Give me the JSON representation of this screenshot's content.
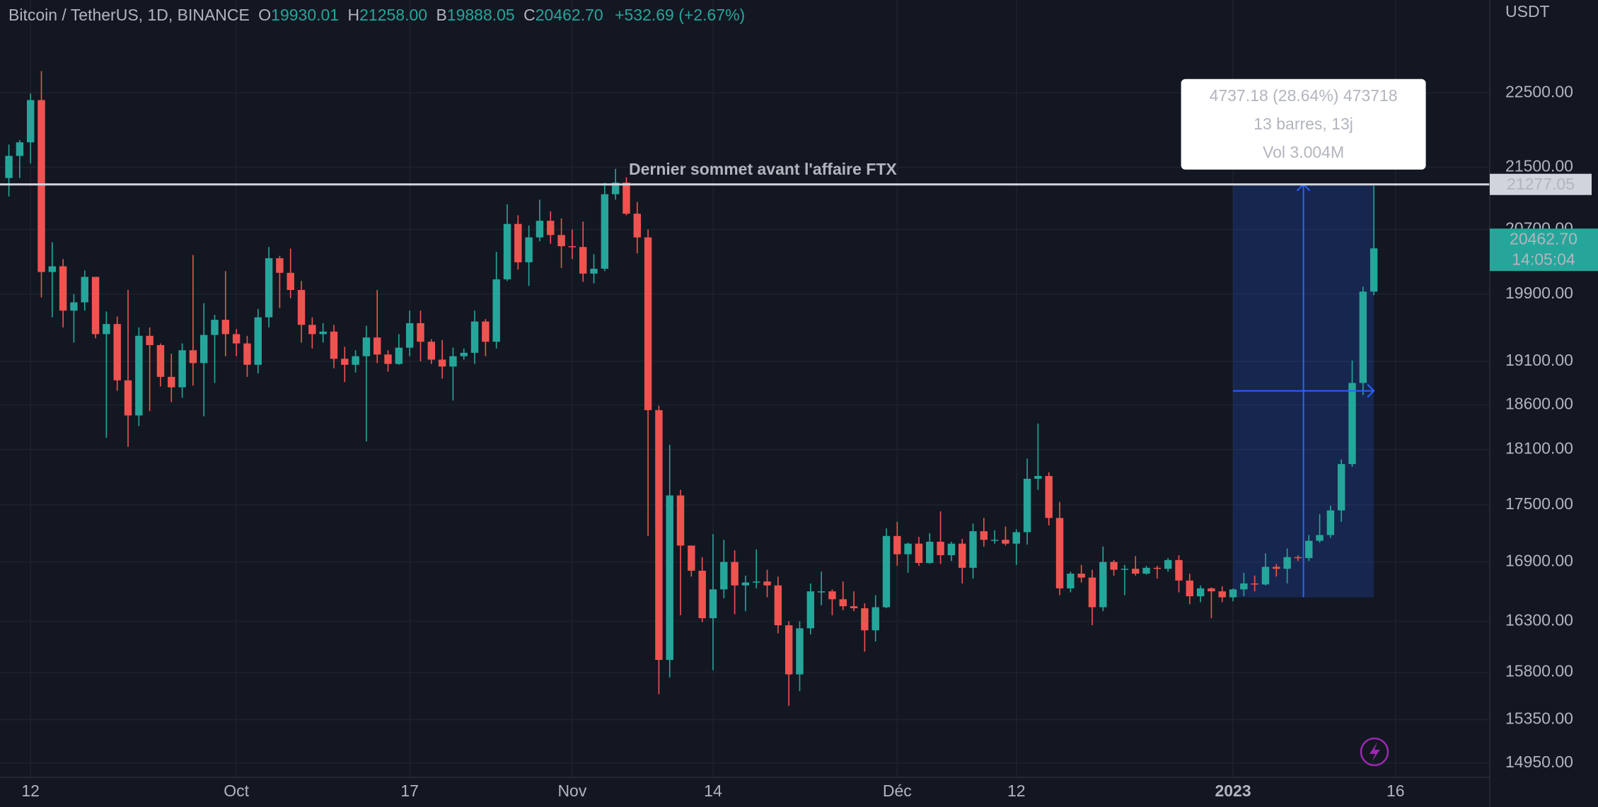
{
  "header": {
    "symbol": "Bitcoin / TetherUS, 1D, BINANCE",
    "o_label": "O",
    "open": "19930.01",
    "h_label": "H",
    "high": "21258.00",
    "l_label": "B",
    "low": "19888.05",
    "c_label": "C",
    "close": "20462.70",
    "change": "+532.69 (+2.67%)"
  },
  "chart_data": {
    "type": "candlestick",
    "currency": "USDT",
    "log_scale": true,
    "grid": true,
    "up_color": "#26a69a",
    "down_color": "#ef5350",
    "xlim": [
      -2.82,
      134.7
    ],
    "ylim": [
      14820,
      23810
    ],
    "xticks": [
      {
        "value": 0,
        "label": "12"
      },
      {
        "value": 19,
        "label": "Oct"
      },
      {
        "value": 35,
        "label": "17"
      },
      {
        "value": 50,
        "label": "Nov"
      },
      {
        "value": 63,
        "label": "14"
      },
      {
        "value": 80,
        "label": "Déc"
      },
      {
        "value": 91,
        "label": "12"
      },
      {
        "value": 111,
        "label": "2023",
        "emphasis": true
      },
      {
        "value": 126,
        "label": "16"
      }
    ],
    "yticks": [
      {
        "value": 22500,
        "label": "22500.00"
      },
      {
        "value": 21500,
        "label": "21500.00"
      },
      {
        "value": 20700,
        "label": "20700.00"
      },
      {
        "value": 19900,
        "label": "19900.00"
      },
      {
        "value": 19100,
        "label": "19100.00"
      },
      {
        "value": 18600,
        "label": "18600.00"
      },
      {
        "value": 18100,
        "label": "18100.00"
      },
      {
        "value": 17500,
        "label": "17500.00"
      },
      {
        "value": 16900,
        "label": "16900.00"
      },
      {
        "value": 16300,
        "label": "16300.00"
      },
      {
        "value": 15800,
        "label": "15800.00"
      },
      {
        "value": 15350,
        "label": "15350.00"
      },
      {
        "value": 14950,
        "label": "14950.00"
      }
    ],
    "x": [
      -2,
      -1,
      0,
      1,
      2,
      3,
      4,
      5,
      6,
      7,
      8,
      9,
      10,
      11,
      12,
      13,
      14,
      15,
      16,
      17,
      18,
      19,
      20,
      21,
      22,
      23,
      24,
      25,
      26,
      27,
      28,
      29,
      30,
      31,
      32,
      33,
      34,
      35,
      36,
      37,
      38,
      39,
      40,
      41,
      42,
      43,
      44,
      45,
      46,
      47,
      48,
      49,
      50,
      51,
      52,
      53,
      54,
      55,
      56,
      57,
      58,
      59,
      60,
      61,
      62,
      63,
      64,
      65,
      66,
      67,
      68,
      69,
      70,
      71,
      72,
      73,
      74,
      75,
      76,
      77,
      78,
      79,
      80,
      81,
      82,
      83,
      84,
      85,
      86,
      87,
      88,
      89,
      90,
      91,
      92,
      93,
      94,
      95,
      96,
      97,
      98,
      99,
      100,
      101,
      102,
      103,
      104,
      105,
      106,
      107,
      108,
      109,
      110,
      111,
      112,
      113,
      114,
      115,
      116,
      117,
      118,
      119,
      120,
      121,
      122,
      123,
      124
    ],
    "open": [
      21360,
      21650,
      21830,
      22400,
      20170,
      20240,
      19700,
      19800,
      20110,
      19420,
      19540,
      18880,
      18480,
      19400,
      19290,
      18920,
      18800,
      19230,
      19080,
      19410,
      19590,
      19420,
      19310,
      19060,
      19620,
      20340,
      20160,
      19950,
      19530,
      19420,
      19450,
      19130,
      19060,
      19160,
      19380,
      19180,
      19070,
      19260,
      19550,
      19330,
      19120,
      19040,
      19160,
      19200,
      19570,
      19330,
      20080,
      20770,
      20290,
      20600,
      20810,
      20630,
      20490,
      20480,
      20150,
      20210,
      21150,
      21300,
      20900,
      20600,
      18540,
      15920,
      17600,
      17070,
      16810,
      16330,
      16620,
      16900,
      16660,
      16690,
      16700,
      16660,
      16260,
      15780,
      16230,
      16600,
      16600,
      16520,
      16450,
      16430,
      16210,
      16440,
      17170,
      16980,
      17090,
      16890,
      17110,
      16970,
      17090,
      16840,
      17220,
      17130,
      17130,
      17090,
      17210,
      17780,
      17810,
      17360,
      16630,
      16780,
      16740,
      16440,
      16900,
      16820,
      16830,
      16780,
      16840,
      16830,
      16920,
      16710,
      16550,
      16630,
      16600,
      16540,
      16620,
      16680,
      16670,
      16850,
      16830,
      16950,
      16940,
      17120,
      17180,
      17440,
      17940,
      18850,
      19930.01
    ],
    "high": [
      21800,
      21860,
      22490,
      22800,
      20540,
      20330,
      19900,
      20190,
      20110,
      19690,
      19630,
      19950,
      19500,
      19500,
      19310,
      19190,
      19310,
      20380,
      19790,
      19650,
      20180,
      19480,
      19400,
      19720,
      20480,
      20370,
      20460,
      20060,
      19620,
      19550,
      19530,
      19270,
      19230,
      19520,
      19950,
      19230,
      19420,
      19700,
      19700,
      19360,
      19350,
      19260,
      19250,
      19700,
      19600,
      20420,
      21020,
      20880,
      20750,
      21080,
      20930,
      20840,
      20700,
      20800,
      20390,
      21300,
      21480,
      21370,
      21050,
      20700,
      18590,
      18150,
      17660,
      17070,
      16950,
      17190,
      17130,
      17020,
      16760,
      17030,
      16820,
      16750,
      16300,
      16300,
      16680,
      16800,
      16620,
      16700,
      16600,
      16480,
      16560,
      17250,
      17320,
      17100,
      17160,
      17200,
      17430,
      17110,
      17140,
      17300,
      17360,
      17230,
      17270,
      17240,
      18000,
      18390,
      17850,
      17530,
      16800,
      16870,
      16820,
      17060,
      16920,
      16870,
      16960,
      16860,
      16860,
      16940,
      16970,
      16780,
      16660,
      16640,
      16650,
      16630,
      16790,
      16760,
      16990,
      16880,
      17040,
      16970,
      17180,
      17400,
      17490,
      17990,
      19110,
      19990,
      21258
    ],
    "low": [
      21120,
      21360,
      21550,
      19860,
      19620,
      19500,
      19320,
      19700,
      19370,
      18230,
      18760,
      18130,
      18360,
      18530,
      18810,
      18630,
      18680,
      18820,
      18470,
      18850,
      19160,
      19160,
      18920,
      18960,
      19500,
      19730,
      19850,
      19320,
      19250,
      19320,
      19020,
      18860,
      18970,
      18190,
      19080,
      18980,
      19060,
      19160,
      19100,
      19070,
      18900,
      18650,
      19120,
      19070,
      19160,
      19250,
      20060,
      20200,
      20000,
      20550,
      20520,
      20220,
      20330,
      20050,
      20030,
      20180,
      21080,
      20880,
      20400,
      17170,
      15590,
      15750,
      16360,
      16750,
      16290,
      15820,
      16530,
      16370,
      16400,
      16630,
      16540,
      16180,
      15480,
      15620,
      16170,
      16460,
      16360,
      16410,
      16400,
      16000,
      16100,
      16430,
      16860,
      16790,
      16860,
      16880,
      16880,
      16910,
      16680,
      16730,
      17060,
      17090,
      17070,
      16870,
      17080,
      17660,
      17280,
      16560,
      16590,
      16690,
      16260,
      16400,
      16760,
      16560,
      16760,
      16770,
      16730,
      16800,
      16590,
      16470,
      16490,
      16330,
      16490,
      16500,
      16550,
      16600,
      16660,
      16750,
      16680,
      16910,
      16910,
      17100,
      17150,
      17320,
      17910,
      18710,
      19888.05
    ],
    "close": [
      21650,
      21830,
      22400,
      20170,
      20240,
      19700,
      19800,
      20110,
      19420,
      19540,
      18880,
      18480,
      19400,
      19290,
      18920,
      18800,
      19230,
      19080,
      19410,
      19590,
      19420,
      19310,
      19060,
      19620,
      20340,
      20160,
      19950,
      19530,
      19420,
      19450,
      19130,
      19060,
      19160,
      19380,
      19180,
      19070,
      19260,
      19550,
      19330,
      19120,
      19040,
      19160,
      19200,
      19570,
      19330,
      20080,
      20770,
      20290,
      20600,
      20810,
      20630,
      20490,
      20480,
      20150,
      20210,
      21150,
      21300,
      20900,
      20600,
      18540,
      15920,
      17600,
      17070,
      16810,
      16330,
      16620,
      16900,
      16660,
      16690,
      16700,
      16660,
      16260,
      15780,
      16230,
      16600,
      16600,
      16520,
      16450,
      16430,
      16210,
      16440,
      17170,
      16980,
      17090,
      16890,
      17110,
      16970,
      17090,
      16840,
      17220,
      17130,
      17130,
      17090,
      17210,
      17780,
      17810,
      17360,
      16630,
      16780,
      16740,
      16440,
      16900,
      16820,
      16830,
      16780,
      16840,
      16830,
      16920,
      16710,
      16550,
      16630,
      16600,
      16540,
      16620,
      16680,
      16670,
      16850,
      16830,
      16950,
      16940,
      17120,
      17180,
      17440,
      17940,
      18850,
      19930,
      20462.7
    ],
    "hline": {
      "value": 21277.05,
      "label": "Dernier sommet avant l'affaire FTX",
      "color": "#d1d4dc"
    },
    "last_price": {
      "value": 20462.7,
      "label": "20462.70",
      "countdown": "14:05:04"
    },
    "measure": {
      "x": [
        111,
        124
      ],
      "y": [
        16539.87,
        21277.05
      ],
      "color": "#2962ff",
      "lines": [
        "4737.18 (28.64%) 473718",
        "13 barres, 13j",
        "Vol 3.004M"
      ]
    }
  }
}
